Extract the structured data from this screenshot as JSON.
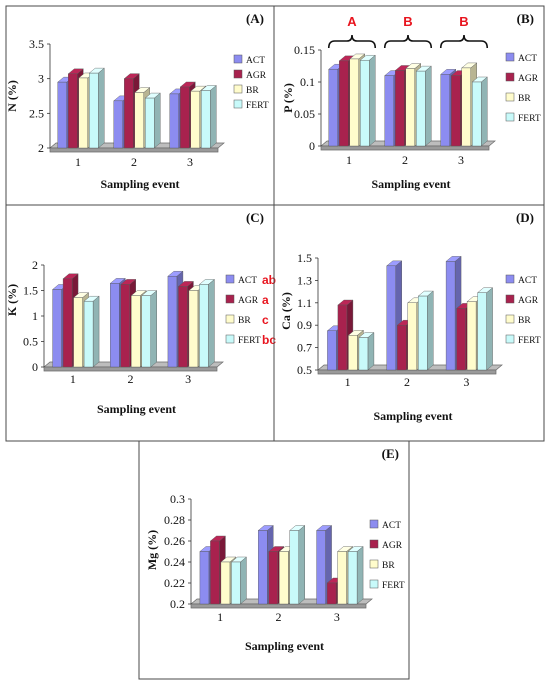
{
  "colors": {
    "ACT": "#8c8cf0",
    "AGR": "#a8224e",
    "BR": "#fffccc",
    "FERT": "#c8fafa",
    "annotation": "#e8141e",
    "frame": "#4a4a4a"
  },
  "legend_labels": [
    "ACT",
    "AGR",
    "BR",
    "FERT"
  ],
  "chart_data": [
    {
      "type": "bar",
      "panel_label": "(A)",
      "ylabel": "N (%)",
      "xlabel": "Sampling event",
      "categories": [
        "1",
        "2",
        "3"
      ],
      "ylim": [
        2,
        3.5
      ],
      "yticks": [
        "2",
        "2.5",
        "3",
        "3.5"
      ],
      "grid": false,
      "legend_position": "right",
      "series": [
        {
          "name": "ACT",
          "values": [
            2.95,
            2.68,
            2.78
          ]
        },
        {
          "name": "AGR",
          "values": [
            3.07,
            3.0,
            2.88
          ]
        },
        {
          "name": "BR",
          "values": [
            3.01,
            2.8,
            2.82
          ]
        },
        {
          "name": "FERT",
          "values": [
            3.08,
            2.72,
            2.83
          ]
        }
      ]
    },
    {
      "type": "bar",
      "panel_label": "(B)",
      "ylabel": "P (%)",
      "xlabel": "Sampling event",
      "categories": [
        "1",
        "2",
        "3"
      ],
      "ylim": [
        0,
        0.15
      ],
      "yticks": [
        "0",
        "0.05",
        "0.1",
        "0.15"
      ],
      "grid": false,
      "legend_position": "right",
      "group_annotations": [
        "A",
        "B",
        "B"
      ],
      "series": [
        {
          "name": "ACT",
          "values": [
            0.12,
            0.11,
            0.112
          ]
        },
        {
          "name": "AGR",
          "values": [
            0.133,
            0.118,
            0.11
          ]
        },
        {
          "name": "BR",
          "values": [
            0.136,
            0.121,
            0.122
          ]
        },
        {
          "name": "FERT",
          "values": [
            0.134,
            0.117,
            0.1
          ]
        }
      ]
    },
    {
      "type": "bar",
      "panel_label": "(C)",
      "ylabel": "K (%)",
      "xlabel": "Sampling event",
      "categories": [
        "1",
        "2",
        "3"
      ],
      "ylim": [
        0,
        2
      ],
      "yticks": [
        "0",
        "0.5",
        "1",
        "1.5",
        "2"
      ],
      "grid": false,
      "legend_position": "right",
      "legend_annotations": [
        "ab",
        "a",
        "c",
        "bc"
      ],
      "series": [
        {
          "name": "ACT",
          "values": [
            1.52,
            1.64,
            1.78
          ]
        },
        {
          "name": "AGR",
          "values": [
            1.73,
            1.62,
            1.58
          ]
        },
        {
          "name": "BR",
          "values": [
            1.36,
            1.4,
            1.5
          ]
        },
        {
          "name": "FERT",
          "values": [
            1.29,
            1.4,
            1.62
          ]
        }
      ]
    },
    {
      "type": "bar",
      "panel_label": "(D)",
      "ylabel": "Ca (%)",
      "xlabel": "Sampling event",
      "categories": [
        "1",
        "2",
        "3"
      ],
      "ylim": [
        0.5,
        1.5
      ],
      "yticks": [
        "0.5",
        "0.7",
        "0.9",
        "1.1",
        "1.3",
        "1.5"
      ],
      "grid": false,
      "legend_position": "right",
      "series": [
        {
          "name": "ACT",
          "values": [
            0.85,
            1.43,
            1.47
          ]
        },
        {
          "name": "AGR",
          "values": [
            1.08,
            0.9,
            1.05
          ]
        },
        {
          "name": "BR",
          "values": [
            0.81,
            1.1,
            1.11
          ]
        },
        {
          "name": "FERT",
          "values": [
            0.79,
            1.16,
            1.19
          ]
        }
      ]
    },
    {
      "type": "bar",
      "panel_label": "(E)",
      "ylabel": "Mg (%)",
      "xlabel": "Sampling event",
      "categories": [
        "1",
        "2",
        "3"
      ],
      "ylim": [
        0.2,
        0.3
      ],
      "yticks": [
        "0.2",
        "0.22",
        "0.24",
        "0.26",
        "0.28",
        "0.3"
      ],
      "grid": false,
      "legend_position": "right",
      "series": [
        {
          "name": "ACT",
          "values": [
            0.25,
            0.27,
            0.27
          ]
        },
        {
          "name": "AGR",
          "values": [
            0.26,
            0.25,
            0.22
          ]
        },
        {
          "name": "BR",
          "values": [
            0.24,
            0.25,
            0.25
          ]
        },
        {
          "name": "FERT",
          "values": [
            0.24,
            0.27,
            0.25
          ]
        }
      ]
    }
  ]
}
